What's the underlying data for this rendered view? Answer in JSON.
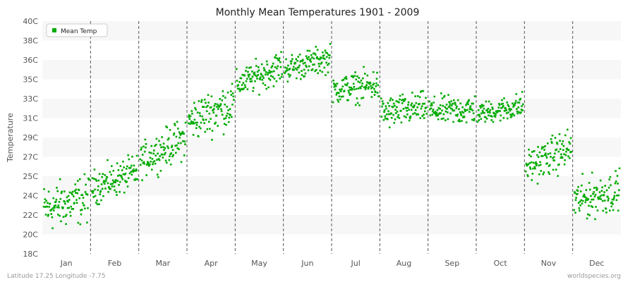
{
  "chart_data": {
    "type": "scatter",
    "title": "Monthly Mean Temperatures 1901 - 2009",
    "xlabel": "",
    "ylabel": "Temperature",
    "categories": [
      "Jan",
      "Feb",
      "Mar",
      "Apr",
      "May",
      "Jun",
      "Jul",
      "Aug",
      "Sep",
      "Oct",
      "Nov",
      "Dec"
    ],
    "y_ticks": [
      "18C",
      "20C",
      "22C",
      "24C",
      "25C",
      "27C",
      "29C",
      "31C",
      "33C",
      "35C",
      "36C",
      "38C",
      "40C"
    ],
    "ylim": [
      18,
      40
    ],
    "grid": "alternating horizontal bands with dashed vertical month separators",
    "legend": {
      "placement": "top-left",
      "entries": [
        "Mean Temp"
      ]
    },
    "series": [
      {
        "name": "Mean Temp",
        "color": "#00aa00",
        "years": [
          1901,
          2009
        ],
        "monthly_ranges": [
          {
            "month": "Jan",
            "start": [
              20.5,
              24.0
            ],
            "end": [
              21.5,
              25.0
            ]
          },
          {
            "month": "Feb",
            "start": [
              23.0,
              25.5
            ],
            "end": [
              24.5,
              27.0
            ]
          },
          {
            "month": "Mar",
            "start": [
              25.5,
              28.0
            ],
            "end": [
              27.5,
              30.5
            ]
          },
          {
            "month": "Apr",
            "start": [
              29.0,
              32.0
            ],
            "end": [
              30.5,
              34.0
            ]
          },
          {
            "month": "May",
            "start": [
              33.0,
              35.0
            ],
            "end": [
              34.5,
              37.0
            ]
          },
          {
            "month": "Jun",
            "start": [
              34.5,
              36.5
            ],
            "end": [
              35.5,
              37.5
            ]
          },
          {
            "month": "Jul",
            "start": [
              32.5,
              34.5
            ],
            "end": [
              32.8,
              35.2
            ]
          },
          {
            "month": "Aug",
            "start": [
              30.0,
              32.5
            ],
            "end": [
              30.8,
              33.0
            ]
          },
          {
            "month": "Sep",
            "start": [
              30.5,
              32.5
            ],
            "end": [
              30.5,
              32.8
            ]
          },
          {
            "month": "Oct",
            "start": [
              30.5,
              32.0
            ],
            "end": [
              31.0,
              33.0
            ]
          },
          {
            "month": "Nov",
            "start": [
              25.0,
              27.5
            ],
            "end": [
              26.5,
              29.5
            ]
          },
          {
            "month": "Dec",
            "start": [
              21.5,
              24.5
            ],
            "end": [
              22.5,
              25.5
            ]
          }
        ]
      }
    ]
  },
  "footer": {
    "left": "Latitude 17.25 Longitude -7.75",
    "right": "worldspecies.org"
  },
  "colors": {
    "band_light": "#f7f7f7",
    "band_white": "#ffffff",
    "separator": "#555555",
    "marker": "#00aa00"
  }
}
